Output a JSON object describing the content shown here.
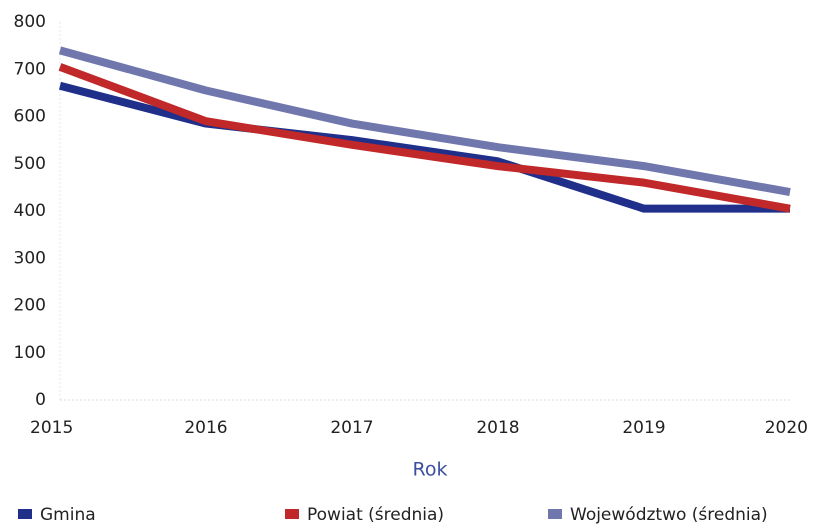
{
  "chart_data": {
    "type": "line",
    "x_label": "Rok",
    "x": [
      2015,
      2016,
      2017,
      2018,
      2019,
      2020
    ],
    "xlim": [
      2015,
      2020
    ],
    "xticks": [
      2015,
      2016,
      2017,
      2018,
      2019,
      2020
    ],
    "ylim": [
      0,
      800
    ],
    "yticks": [
      0,
      100,
      200,
      300,
      400,
      500,
      600,
      700,
      800
    ],
    "grid": false,
    "legend": "bottom",
    "series": [
      {
        "name": "Gmina",
        "color": "#1f2f8a",
        "values": [
          665,
          585,
          550,
          505,
          405,
          405
        ]
      },
      {
        "name": "Powiat (średnia)",
        "color": "#c0282a",
        "values": [
          705,
          590,
          540,
          495,
          460,
          405
        ]
      },
      {
        "name": "Województwo (średnia)",
        "color": "#6f77ad",
        "values": [
          740,
          655,
          585,
          535,
          495,
          440
        ]
      }
    ]
  }
}
